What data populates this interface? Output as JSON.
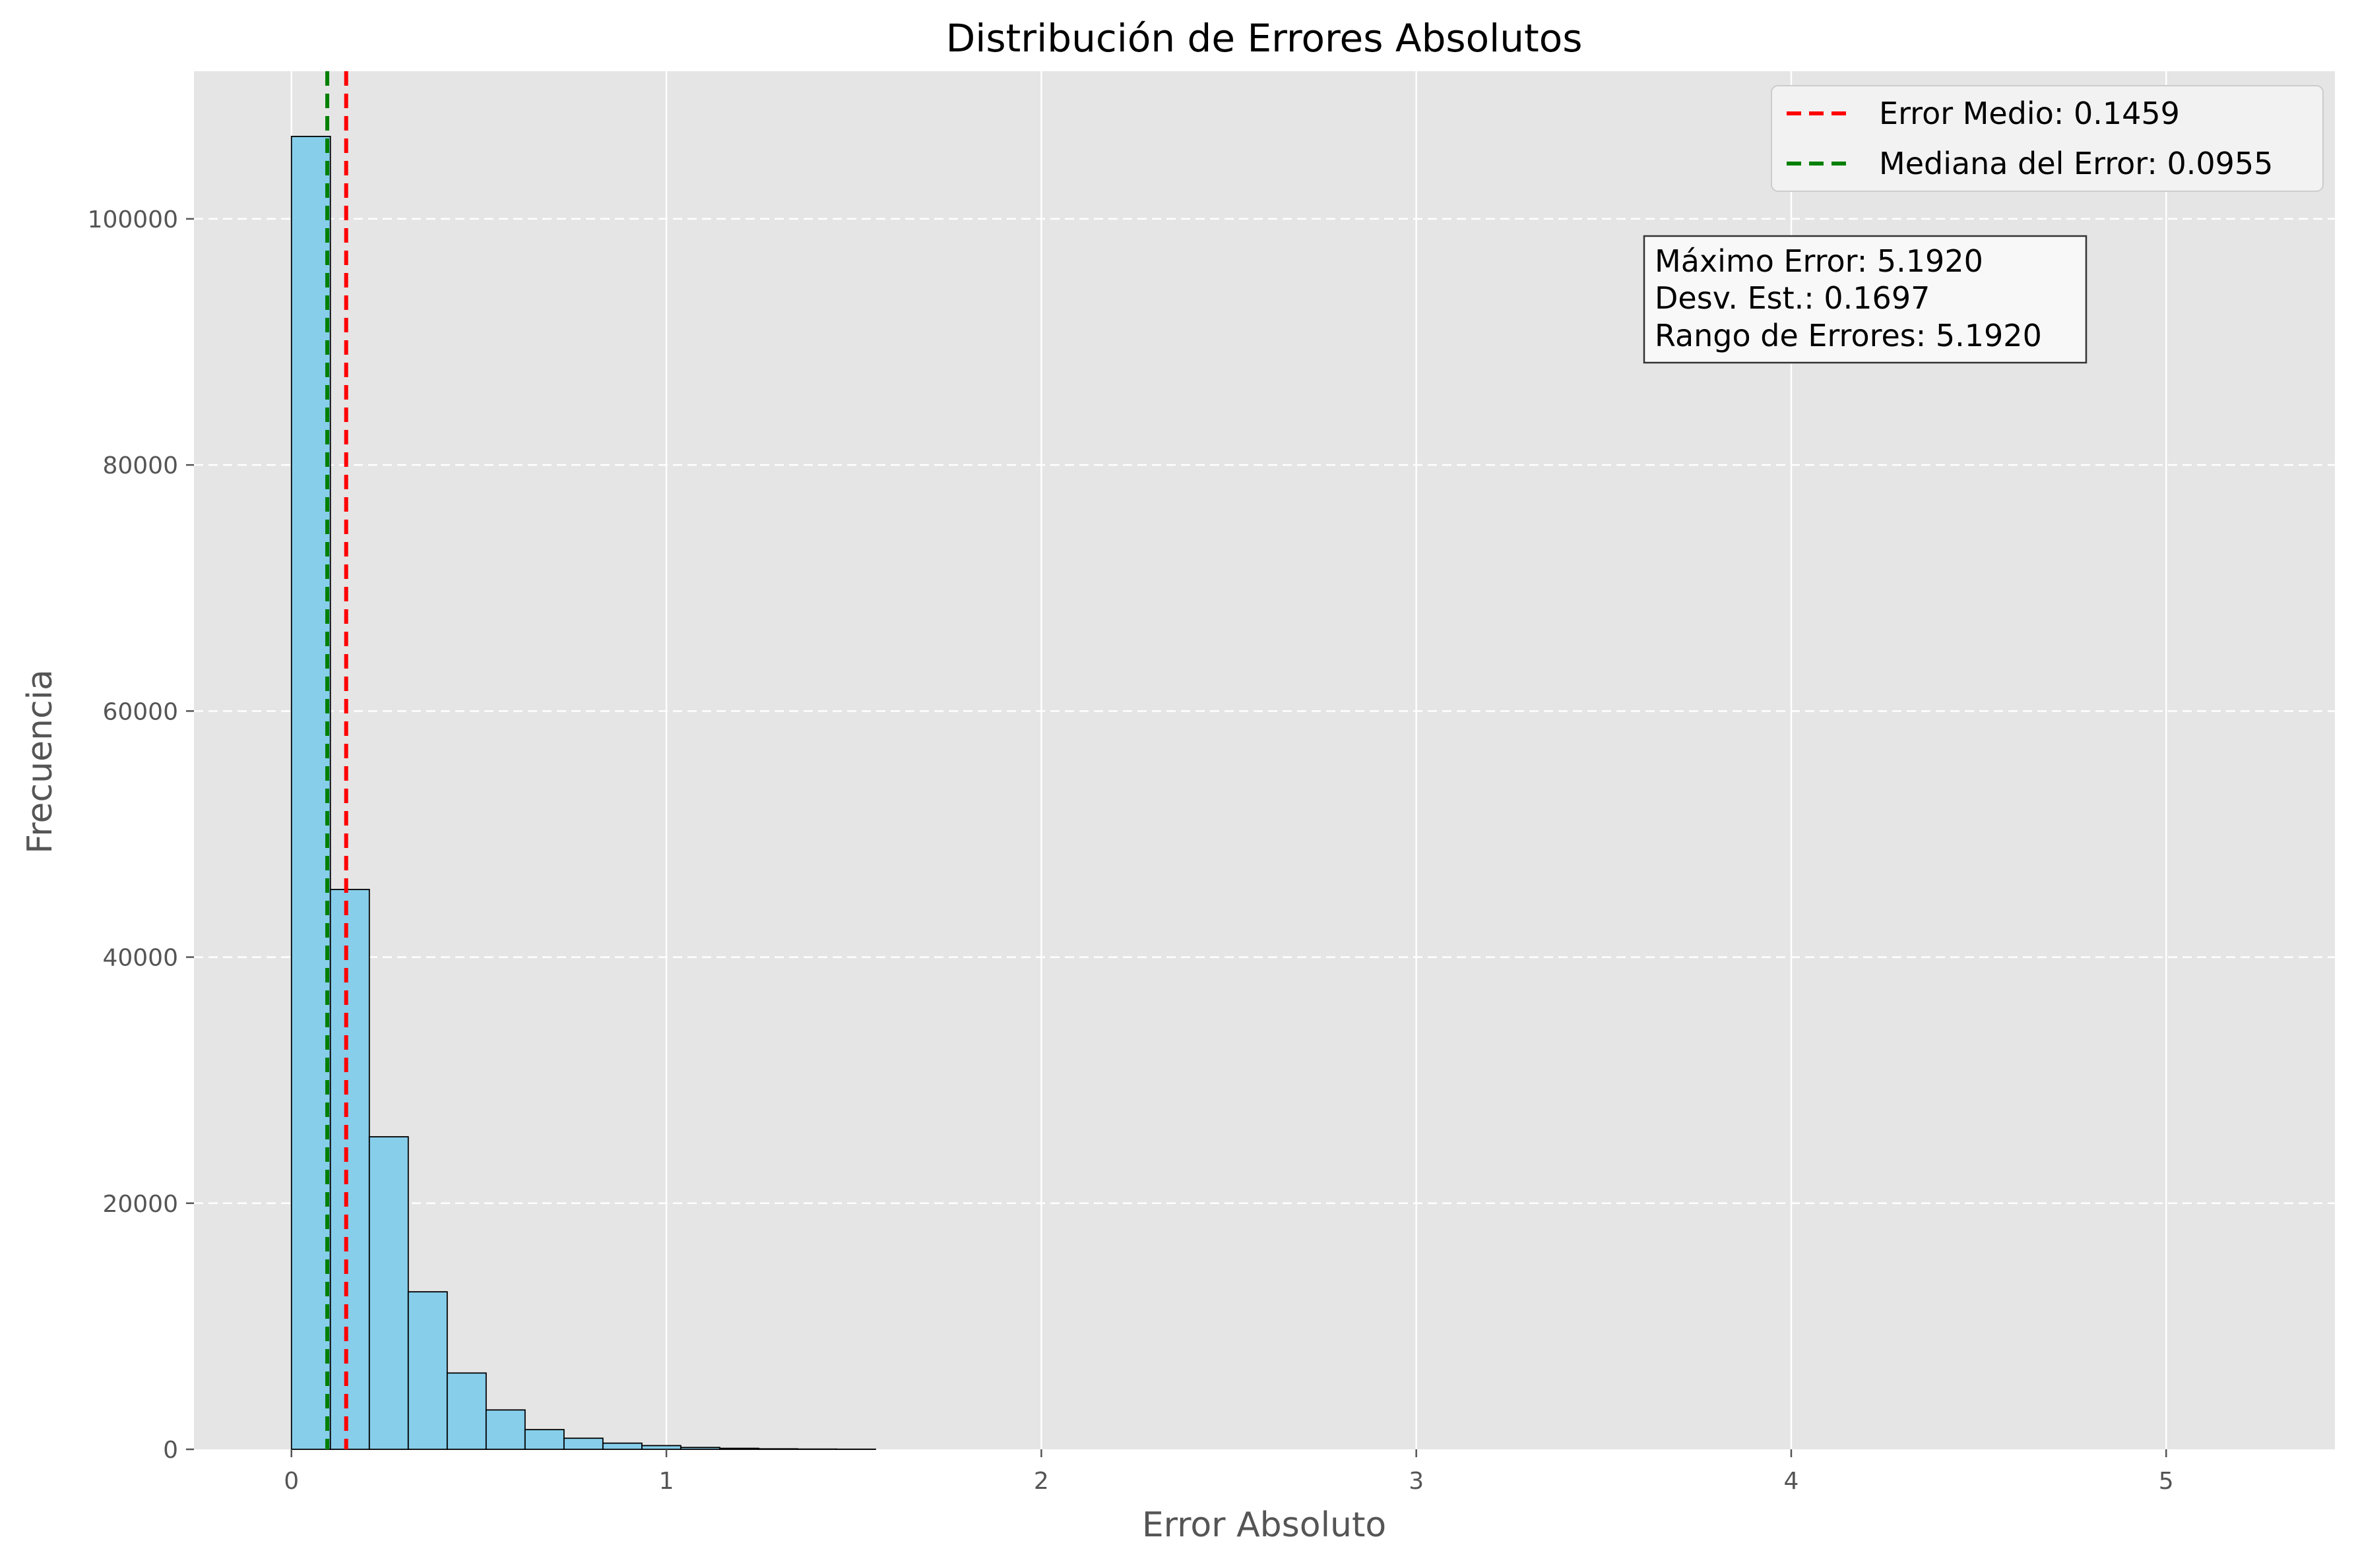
{
  "chart_data": {
    "type": "bar",
    "title": "Distribución de Errores Absolutos",
    "xlabel": "Error Absoluto",
    "ylabel": "Frecuencia",
    "xlim": [
      -0.26,
      5.45
    ],
    "ylim": [
      0,
      112000
    ],
    "x_ticks": [
      0,
      1,
      2,
      3,
      4,
      5
    ],
    "y_ticks": [
      0,
      20000,
      40000,
      60000,
      80000,
      100000
    ],
    "grid": true,
    "bin_width": 0.1038,
    "bins": [
      {
        "x0": 0.0,
        "x1": 0.1038,
        "count": 106700
      },
      {
        "x0": 0.1038,
        "x1": 0.2077,
        "count": 45500
      },
      {
        "x0": 0.2077,
        "x1": 0.3115,
        "count": 25400
      },
      {
        "x0": 0.3115,
        "x1": 0.4154,
        "count": 12800
      },
      {
        "x0": 0.4154,
        "x1": 0.5192,
        "count": 6200
      },
      {
        "x0": 0.5192,
        "x1": 0.623,
        "count": 3200
      },
      {
        "x0": 0.623,
        "x1": 0.7269,
        "count": 1600
      },
      {
        "x0": 0.7269,
        "x1": 0.8307,
        "count": 900
      },
      {
        "x0": 0.8307,
        "x1": 0.9346,
        "count": 500
      },
      {
        "x0": 0.9346,
        "x1": 1.0384,
        "count": 300
      },
      {
        "x0": 1.0384,
        "x1": 1.1422,
        "count": 150
      },
      {
        "x0": 1.1422,
        "x1": 1.2461,
        "count": 80
      },
      {
        "x0": 1.2461,
        "x1": 1.3499,
        "count": 40
      },
      {
        "x0": 1.3499,
        "x1": 1.4538,
        "count": 20
      },
      {
        "x0": 1.4538,
        "x1": 1.5576,
        "count": 10
      }
    ],
    "vlines": [
      {
        "label": "Error Medio: 0.1459",
        "x": 0.1459,
        "color": "#ff0000"
      },
      {
        "label": "Mediana del Error: 0.0955",
        "x": 0.0955,
        "color": "#008000"
      }
    ],
    "legend_position": "top-right",
    "stats_box": [
      "Máximo Error: 5.1920",
      "Desv. Est.: 0.1697",
      "Rango de Errores: 5.1920"
    ],
    "colors": {
      "bar_fill": "#87ceeb",
      "bar_edge": "#000000",
      "plot_bg": "#e5e5e5",
      "grid": "#ffffff",
      "text": "#555555"
    }
  }
}
